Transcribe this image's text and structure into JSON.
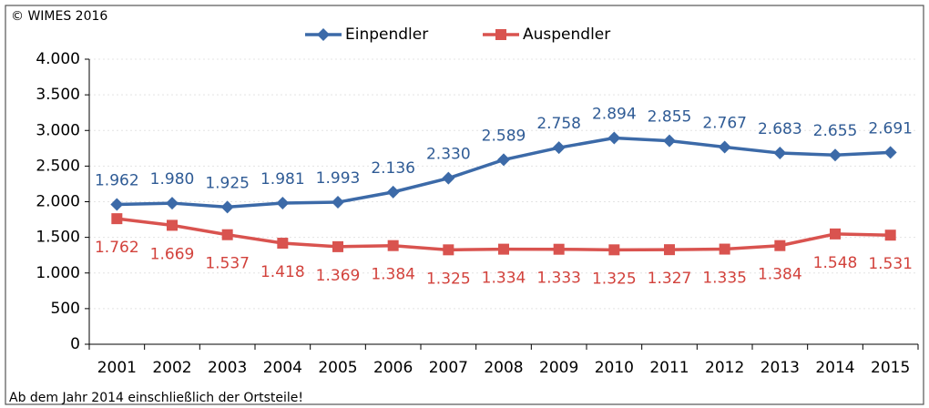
{
  "chart_data": {
    "type": "line",
    "copyright": "© WIMES 2016",
    "note": "Ab dem Jahr 2014 einschließlich der Ortsteile!",
    "categories": [
      "2001",
      "2002",
      "2003",
      "2004",
      "2005",
      "2006",
      "2007",
      "2008",
      "2009",
      "2010",
      "2011",
      "2012",
      "2013",
      "2014",
      "2015"
    ],
    "series": [
      {
        "name": "Einpendler",
        "color": "#3c6aa8",
        "label_color": "#2f5b95",
        "marker": "diamond",
        "values": [
          1962,
          1980,
          1925,
          1981,
          1993,
          2136,
          2330,
          2589,
          2758,
          2894,
          2855,
          2767,
          2683,
          2655,
          2691
        ],
        "value_labels": [
          "1.962",
          "1.980",
          "1.925",
          "1.981",
          "1.993",
          "2.136",
          "2.330",
          "2.589",
          "2.758",
          "2.894",
          "2.855",
          "2.767",
          "2.683",
          "2.655",
          "2.691"
        ]
      },
      {
        "name": "Auspendler",
        "color": "#d9534f",
        "label_color": "#d2423c",
        "marker": "square",
        "values": [
          1762,
          1669,
          1537,
          1418,
          1369,
          1384,
          1325,
          1334,
          1333,
          1325,
          1327,
          1335,
          1384,
          1548,
          1531
        ],
        "value_labels": [
          "1.762",
          "1.669",
          "1.537",
          "1.418",
          "1.369",
          "1.384",
          "1.325",
          "1.334",
          "1.333",
          "1.325",
          "1.327",
          "1.335",
          "1.384",
          "1.548",
          "1.531"
        ]
      }
    ],
    "ylim": [
      0,
      4000
    ],
    "yticks": [
      0,
      500,
      {
        "value": 1000,
        "label": "1.000"
      },
      {
        "value": 1500,
        "label": "1.500"
      },
      {
        "value": 2000,
        "label": "2.000"
      },
      {
        "value": 2500,
        "label": "2.500"
      },
      {
        "value": 3000,
        "label": "3.000"
      },
      {
        "value": 3500,
        "label": "3.500"
      },
      {
        "value": 4000,
        "label": "4.000"
      }
    ],
    "grid": true,
    "legend": "top"
  }
}
